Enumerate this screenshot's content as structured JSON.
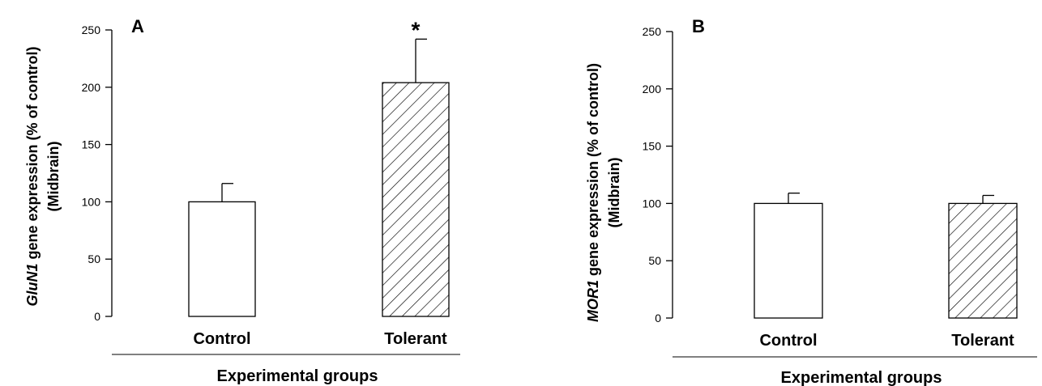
{
  "chart_data": [
    {
      "type": "bar",
      "panel": "A",
      "categories": [
        "Control",
        "Tolerant"
      ],
      "values": [
        100,
        204
      ],
      "errors": [
        16,
        38
      ],
      "fills": [
        "white",
        "hatched"
      ],
      "annotations": [
        "",
        "*"
      ],
      "ylabel_italic": "GluN1",
      "ylabel_rest": " gene expression (% of control)",
      "ylabel_line2": "(Midbrain)",
      "xlabel": "Experimental groups",
      "ylim": [
        0,
        250
      ],
      "yticks": [
        "0",
        "50",
        "100",
        "150",
        "200",
        "250"
      ],
      "grid": false
    },
    {
      "type": "bar",
      "panel": "B",
      "categories": [
        "Control",
        "Tolerant"
      ],
      "values": [
        100,
        100
      ],
      "errors": [
        9,
        7
      ],
      "fills": [
        "white",
        "hatched"
      ],
      "annotations": [
        "",
        ""
      ],
      "ylabel_italic": "MOR1",
      "ylabel_rest": " gene expression (% of control)",
      "ylabel_line2": "(Midbrain)",
      "xlabel": "Experimental groups",
      "ylim": [
        0,
        250
      ],
      "yticks": [
        "0",
        "50",
        "100",
        "150",
        "200",
        "250"
      ],
      "grid": false
    }
  ]
}
